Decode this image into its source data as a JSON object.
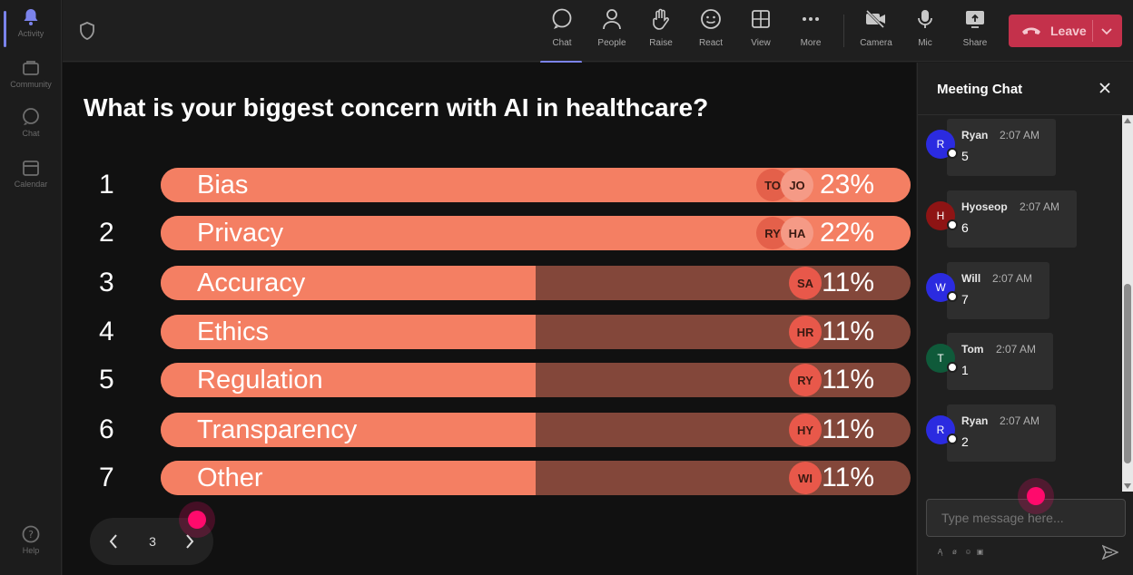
{
  "rail": {
    "items": [
      {
        "label": "Activity",
        "icon": "bell-icon"
      },
      {
        "label": "Community",
        "icon": "community-icon"
      },
      {
        "label": "Chat",
        "icon": "chat-icon"
      },
      {
        "label": "Calendar",
        "icon": "calendar-icon"
      }
    ],
    "help": {
      "label": "Help",
      "icon": "help-icon"
    }
  },
  "toolbar": {
    "chat": "Chat",
    "people": "People",
    "raise": "Raise",
    "react": "React",
    "view": "View",
    "more": "More",
    "camera": "Camera",
    "mic": "Mic",
    "share": "Share",
    "leave": "Leave"
  },
  "poll": {
    "question": "What is your biggest concern with AI in healthcare?",
    "options": [
      {
        "rank": "1",
        "label": "Bias",
        "percent": "23%",
        "fill": 1.0,
        "avatars": [
          "TO",
          "JO"
        ]
      },
      {
        "rank": "2",
        "label": "Privacy",
        "percent": "22%",
        "fill": 1.0,
        "avatars": [
          "RY",
          "HA"
        ]
      },
      {
        "rank": "3",
        "label": "Accuracy",
        "percent": "11%",
        "fill": 0.5,
        "avatars": [
          "SA"
        ]
      },
      {
        "rank": "4",
        "label": "Ethics",
        "percent": "11%",
        "fill": 0.5,
        "avatars": [
          "HR"
        ]
      },
      {
        "rank": "5",
        "label": "Regulation",
        "percent": "11%",
        "fill": 0.5,
        "avatars": [
          "RY"
        ]
      },
      {
        "rank": "6",
        "label": "Transparency",
        "percent": "11%",
        "fill": 0.5,
        "avatars": [
          "HY"
        ]
      },
      {
        "rank": "7",
        "label": "Other",
        "percent": "11%",
        "fill": 0.5,
        "avatars": [
          "WI"
        ]
      }
    ],
    "page": "3"
  },
  "chat": {
    "title": "Meeting Chat",
    "messages": [
      {
        "initial": "R",
        "name": "Ryan",
        "time": "2:07 AM",
        "text": "5",
        "color": "#2b2be0"
      },
      {
        "initial": "H",
        "name": "Hyoseop",
        "time": "2:07 AM",
        "text": "6",
        "color": "#8e1414"
      },
      {
        "initial": "W",
        "name": "Will",
        "time": "2:07 AM",
        "text": "7",
        "color": "#2b2be0"
      },
      {
        "initial": "T",
        "name": "Tom",
        "time": "2:07 AM",
        "text": "1",
        "color": "#0f5a3a"
      },
      {
        "initial": "R",
        "name": "Ryan",
        "time": "2:07 AM",
        "text": "2",
        "color": "#2b2be0"
      }
    ],
    "placeholder": "Type message here..."
  },
  "colors": {
    "bar_fill": "#f47f63",
    "bar_track": "#83473a",
    "leave": "#c4314b",
    "accent": "#7b83eb",
    "cursor": "#ff0a6c"
  }
}
